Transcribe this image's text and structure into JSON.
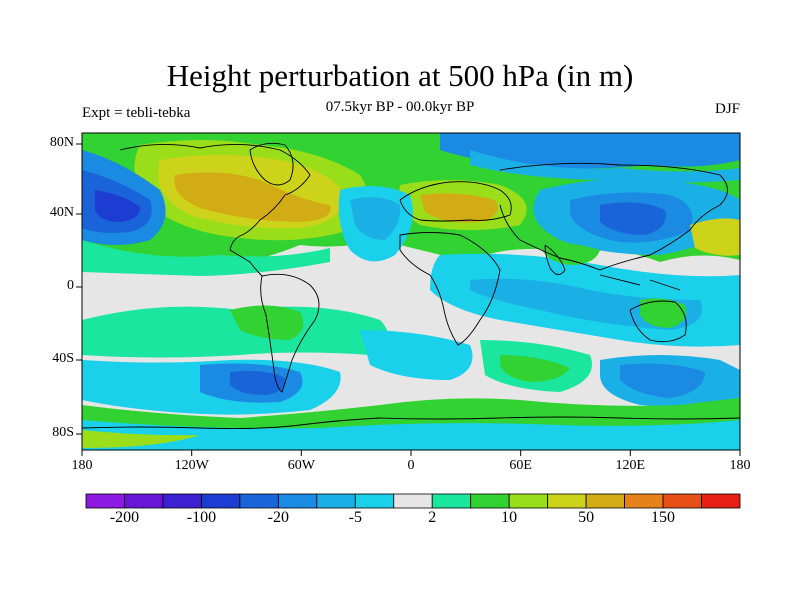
{
  "header": {
    "title": "Height perturbation at 500 hPa (in m)",
    "subtitle": "07.5kyr BP - 00.0kyr BP",
    "left": "Expt = tebli-tebka",
    "right": "DJF"
  },
  "axes": {
    "lat_labels": [
      "80N",
      "40N",
      "0",
      "40S",
      "80S"
    ],
    "lon_labels": [
      "180",
      "120W",
      "60W",
      "0",
      "60E",
      "120E",
      "180"
    ]
  },
  "colorbar": {
    "labels": [
      "-200",
      "-100",
      "-20",
      "-5",
      "2",
      "10",
      "50",
      "150"
    ],
    "colors": [
      "#8c1ae0",
      "#6a14d8",
      "#3c20d2",
      "#1c3cd2",
      "#1a64da",
      "#1a8ae2",
      "#1ab0e6",
      "#1ad0ea",
      "#e6e6e6",
      "#1ae6a0",
      "#32d232",
      "#9ade1a",
      "#cdd21a",
      "#d2ac14",
      "#e6821a",
      "#e65014",
      "#e61e14"
    ]
  },
  "map_colors": {
    "background": "#e6e6e6",
    "blue_dark": "#1c3cd2",
    "blue_mid": "#1a64da",
    "blue_light": "#1a8ae2",
    "cyan": "#1ab0e6",
    "cyan_light": "#1ad0ea",
    "teal": "#1ae6a0",
    "green": "#32d232",
    "lime": "#9ade1a",
    "yellow": "#cdd21a",
    "gold": "#d2ac14",
    "coast": "#000000"
  }
}
